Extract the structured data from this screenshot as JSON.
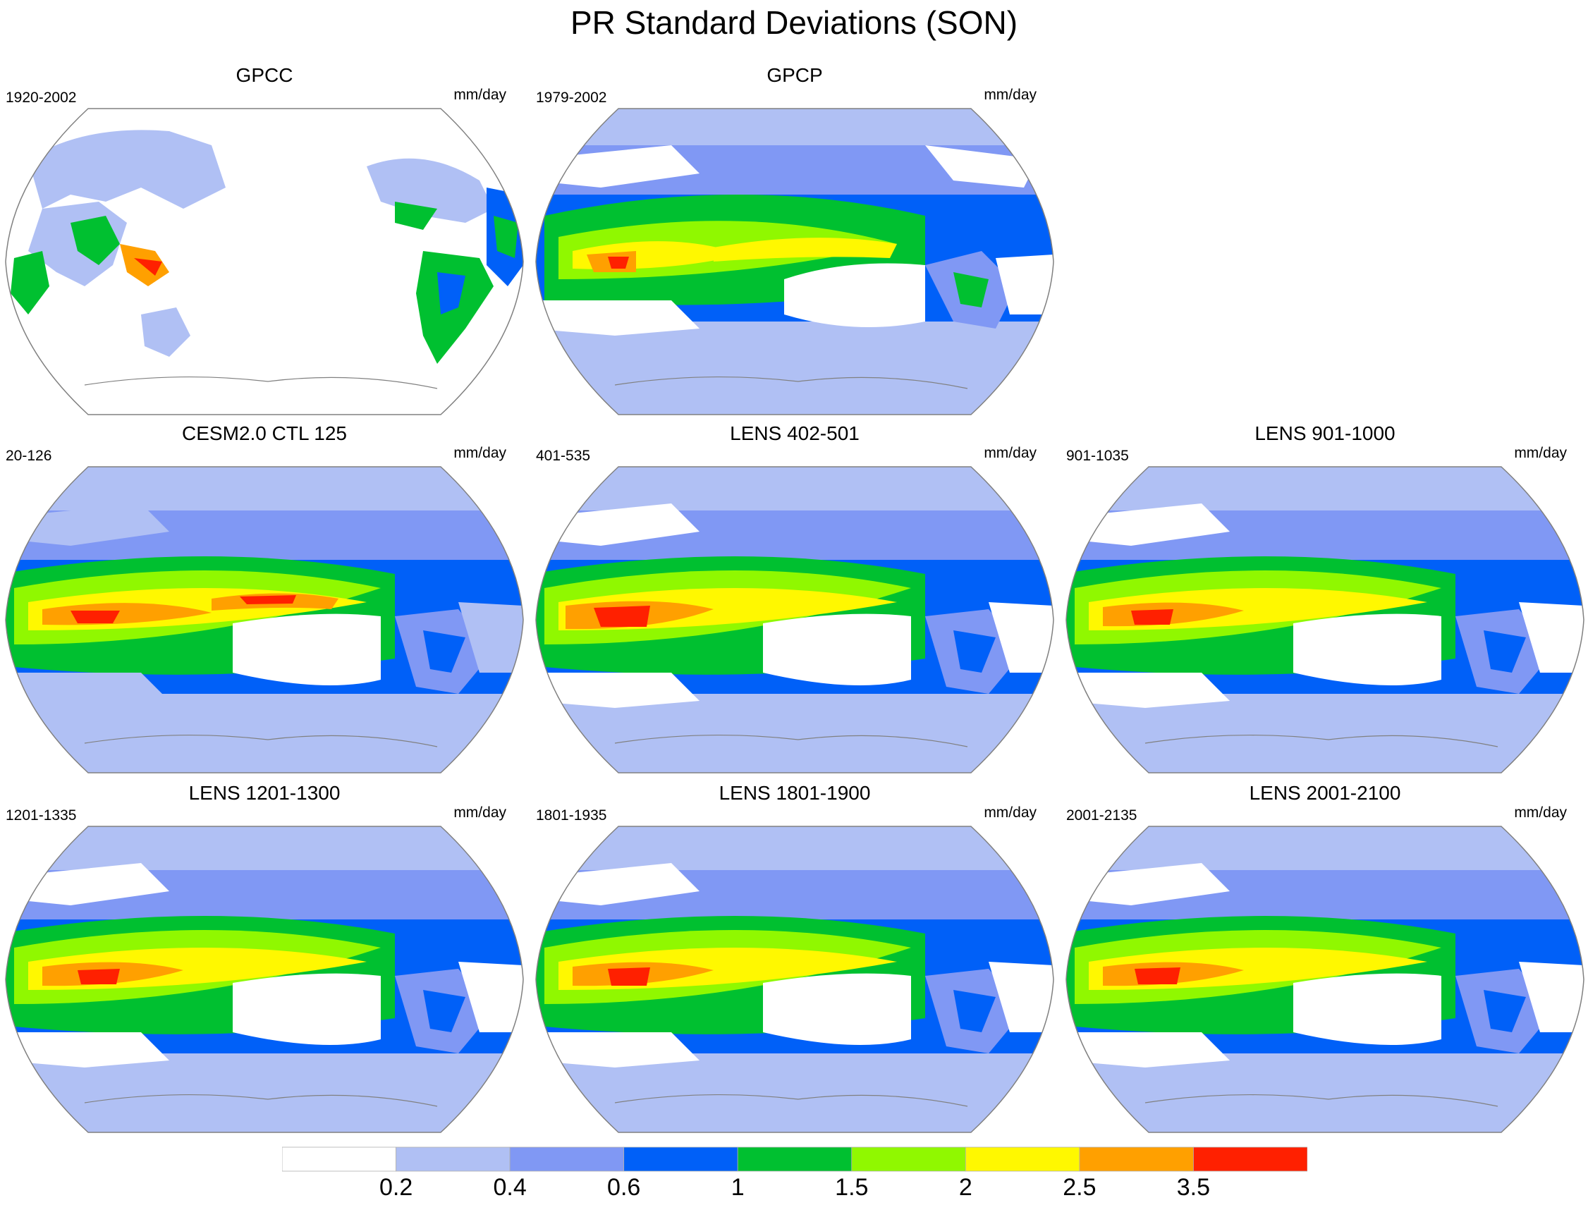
{
  "figure": {
    "title": "PR Standard Deviations (SON)"
  },
  "panels": [
    {
      "title": "GPCC",
      "period": "1920-2002",
      "units": "mm/day"
    },
    {
      "title": "GPCP",
      "period": "1979-2002",
      "units": "mm/day"
    },
    {
      "title": "CESM2.0 CTL 125",
      "period": "20-126",
      "units": "mm/day"
    },
    {
      "title": "LENS 402-501",
      "period": "401-535",
      "units": "mm/day"
    },
    {
      "title": "LENS 901-1000",
      "period": "901-1035",
      "units": "mm/day"
    },
    {
      "title": "LENS 1201-1300",
      "period": "1201-1335",
      "units": "mm/day"
    },
    {
      "title": "LENS 1801-1900",
      "period": "1801-1935",
      "units": "mm/day"
    },
    {
      "title": "LENS 2001-2100",
      "period": "2001-2135",
      "units": "mm/day"
    }
  ],
  "colorbar": {
    "labels": [
      "0.2",
      "0.4",
      "0.6",
      "1",
      "1.5",
      "2",
      "2.5",
      "3.5"
    ],
    "colors": [
      "#ffffff",
      "#b0c0f4",
      "#8098f4",
      "#0060f8",
      "#00c030",
      "#90f800",
      "#fff800",
      "#ffa000",
      "#ff2000"
    ]
  },
  "map_colors": {
    "ocean_background": "#ffffff",
    "coastline": "#808080"
  }
}
